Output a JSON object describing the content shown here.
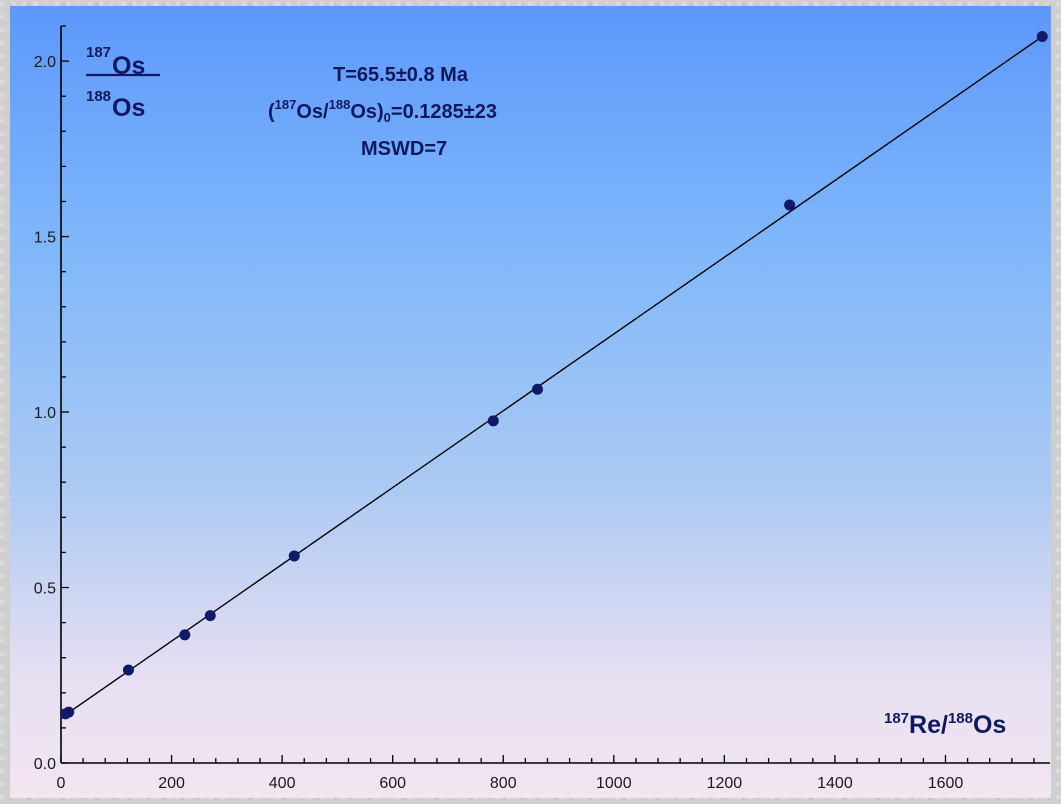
{
  "chart_data": {
    "type": "scatter",
    "title": "",
    "annotation": {
      "age": "T=65.5±0.8 Ma",
      "initial_open": "(",
      "initial_sup1": "187",
      "initial_os": "Os/",
      "initial_sup2": "188",
      "initial_os2": "Os)",
      "initial_sub": "0",
      "initial_value": "=0.1285±23",
      "mswd": "MSWD=7"
    },
    "ylabel": {
      "numerator_sup": "187",
      "numerator": "Os",
      "denominator_sup": "188",
      "denominator": "Os"
    },
    "xlabel": {
      "sup1": "187",
      "part1": "Re/",
      "sup2": "188",
      "part2": "Os"
    },
    "xlim": [
      0,
      1780
    ],
    "ylim": [
      0,
      2.1
    ],
    "x_ticks": [
      "0",
      "200",
      "400",
      "600",
      "800",
      "1000",
      "1200",
      "1400",
      "1600"
    ],
    "x_tick_values": [
      0,
      200,
      400,
      600,
      800,
      1000,
      1200,
      1400,
      1600
    ],
    "y_ticks": [
      "0.0",
      "0.5",
      "1.0",
      "1.5",
      "2.0"
    ],
    "y_tick_values": [
      0,
      0.5,
      1.0,
      1.5,
      2.0
    ],
    "points": [
      {
        "x": 8,
        "y": 0.14
      },
      {
        "x": 14,
        "y": 0.145
      },
      {
        "x": 122,
        "y": 0.265
      },
      {
        "x": 224,
        "y": 0.365
      },
      {
        "x": 270,
        "y": 0.42
      },
      {
        "x": 422,
        "y": 0.59
      },
      {
        "x": 782,
        "y": 0.975
      },
      {
        "x": 862,
        "y": 1.065
      },
      {
        "x": 1318,
        "y": 1.59
      },
      {
        "x": 1775,
        "y": 2.07
      }
    ],
    "regression_line": {
      "x0": 0,
      "y0": 0.1285,
      "x1": 1775,
      "y1": 2.07
    },
    "grid": false,
    "colors": {
      "points": "#101a66",
      "line": "#000000",
      "text": "#12185e"
    }
  }
}
